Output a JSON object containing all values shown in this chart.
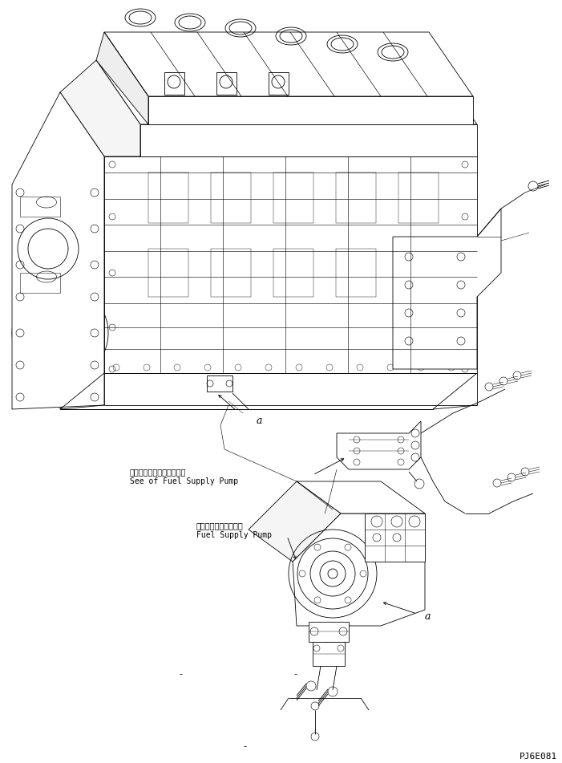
{
  "bg_color": "#ffffff",
  "line_color": "#000000",
  "fig_width": 7.01,
  "fig_height": 9.51,
  "dpi": 100,
  "annotation1_jp": "フェルサプライポンプ参照",
  "annotation1_en": "See of Fuel Supply Pump",
  "annotation2_jp": "フェルサプライポンプ",
  "annotation2_en": "Fuel Supply Pump",
  "label_a1": "a",
  "label_a2": "a",
  "watermark": "PJ6E081",
  "font_size_jp": 7,
  "font_size_en": 7,
  "font_size_label": 9,
  "font_size_watermark": 8,
  "lw": 0.6
}
